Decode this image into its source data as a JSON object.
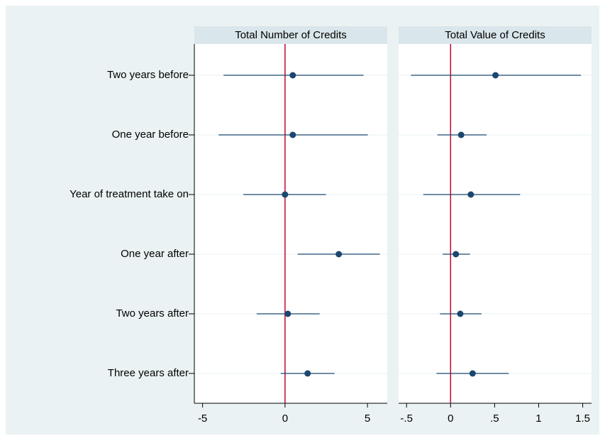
{
  "chart_data": {
    "type": "coefplot",
    "categories": [
      "Two years before",
      "One year before",
      "Year of treatment take on",
      "One year after",
      "Two years after",
      "Three years after"
    ],
    "color": "#1a476f",
    "xline": 0,
    "xline_color": "#c10534",
    "grid": true,
    "panels": [
      {
        "title": "Total Number of Credits",
        "values": [
          0.47,
          0.47,
          0.0,
          3.26,
          0.17,
          1.37
        ],
        "lower": [
          -3.73,
          -4.03,
          -2.53,
          0.77,
          -1.72,
          -0.26
        ],
        "upper": [
          4.76,
          5.02,
          2.49,
          5.75,
          2.1,
          3.0
        ],
        "xlim": [
          -5.5,
          6.2
        ],
        "xticks": [
          -5,
          0,
          5
        ]
      },
      {
        "title": "Total Value of Credits",
        "values": [
          0.51,
          0.12,
          0.23,
          0.06,
          0.11,
          0.25
        ],
        "lower": [
          -0.45,
          -0.15,
          -0.31,
          -0.09,
          -0.12,
          -0.16
        ],
        "upper": [
          1.48,
          0.41,
          0.79,
          0.22,
          0.35,
          0.66
        ],
        "xlim": [
          -0.59,
          1.6
        ],
        "xticks": [
          {
            "value": -0.5,
            "label": "-.5"
          },
          0,
          {
            "value": 0.5,
            "label": ".5"
          },
          1,
          1.5
        ]
      }
    ]
  }
}
